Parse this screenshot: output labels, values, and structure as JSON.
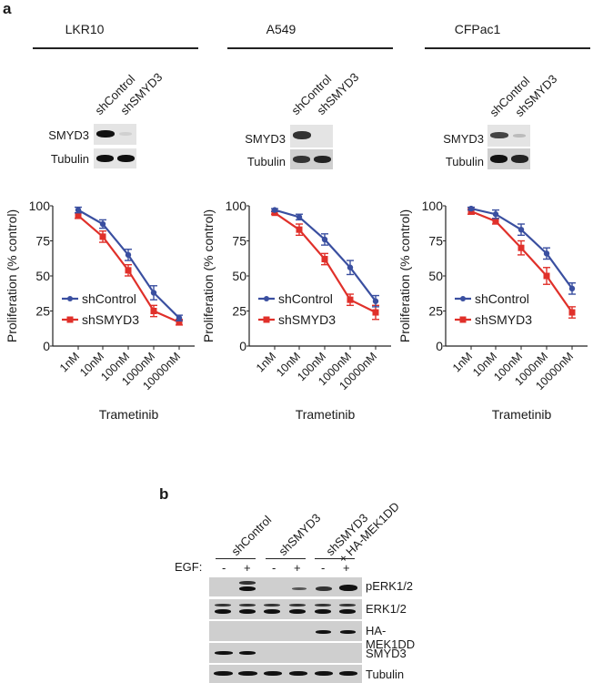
{
  "panel_a": {
    "letter": "a",
    "cells": [
      {
        "name": "LKR10",
        "blot_lanes": [
          "shControl",
          "shSMYD3"
        ],
        "blot_rows": [
          "SMYD3",
          "Tubulin"
        ]
      },
      {
        "name": "A549",
        "blot_lanes": [
          "shControl",
          "shSMYD3"
        ],
        "blot_rows": [
          "SMYD3",
          "Tubulin"
        ]
      },
      {
        "name": "CFPac1",
        "blot_lanes": [
          "shControl",
          "shSMYD3"
        ],
        "blot_rows": [
          "SMYD3",
          "Tubulin"
        ]
      }
    ]
  },
  "panel_b": {
    "letter": "b",
    "groups": [
      "shControl",
      "shSMYD3",
      "shSMYD3",
      "+ HA-MEK1DD"
    ],
    "egf_label": "EGF:",
    "egf_values": [
      "-",
      "+",
      "-",
      "+",
      "-",
      "+"
    ],
    "rows": [
      "pERK1/2",
      "ERK1/2",
      "HA-MEK1DD",
      "SMYD3",
      "Tubulin"
    ]
  },
  "colors": {
    "shControl": "#3a4fa0",
    "shSMYD3": "#e0302a"
  },
  "chart_data": [
    {
      "type": "line",
      "title": "LKR10",
      "xlabel": "Trametinib",
      "ylabel": "Proliferation (% control)",
      "ylim": [
        0,
        100
      ],
      "yticks": [
        0,
        25,
        50,
        75,
        100
      ],
      "categories": [
        "1nM",
        "10nM",
        "100nM",
        "1000nM",
        "10000nM"
      ],
      "legend_position": "lower left",
      "grid": false,
      "series": [
        {
          "name": "shControl",
          "values": [
            97,
            87,
            65,
            38,
            20
          ],
          "errors": [
            2,
            3,
            4,
            5,
            2
          ]
        },
        {
          "name": "shSMYD3",
          "values": [
            93,
            78,
            54,
            25,
            17
          ],
          "errors": [
            2,
            4,
            4,
            4,
            2
          ]
        }
      ]
    },
    {
      "type": "line",
      "title": "A549",
      "xlabel": "Trametinib",
      "ylabel": "Proliferation (% control)",
      "ylim": [
        0,
        100
      ],
      "yticks": [
        0,
        25,
        50,
        75,
        100
      ],
      "categories": [
        "1nM",
        "10nM",
        "100nM",
        "1000nM",
        "10000nM"
      ],
      "legend_position": "lower left",
      "grid": false,
      "series": [
        {
          "name": "shControl",
          "values": [
            97,
            92,
            76,
            56,
            32
          ],
          "errors": [
            1,
            2,
            4,
            5,
            4
          ]
        },
        {
          "name": "shSMYD3",
          "values": [
            95,
            83,
            62,
            33,
            24
          ],
          "errors": [
            1,
            4,
            4,
            4,
            5
          ]
        }
      ]
    },
    {
      "type": "line",
      "title": "CFPac1",
      "xlabel": "Trametinib",
      "ylabel": "Proliferation (% control)",
      "ylim": [
        0,
        100
      ],
      "yticks": [
        0,
        25,
        50,
        75,
        100
      ],
      "categories": [
        "1nM",
        "10nM",
        "100nM",
        "1000nM",
        "10000nM"
      ],
      "legend_position": "lower left",
      "grid": false,
      "series": [
        {
          "name": "shControl",
          "values": [
            98,
            94,
            83,
            66,
            41
          ],
          "errors": [
            1,
            3,
            4,
            4,
            4
          ]
        },
        {
          "name": "shSMYD3",
          "values": [
            96,
            89,
            70,
            50,
            24
          ],
          "errors": [
            2,
            2,
            5,
            6,
            4
          ]
        }
      ]
    }
  ]
}
